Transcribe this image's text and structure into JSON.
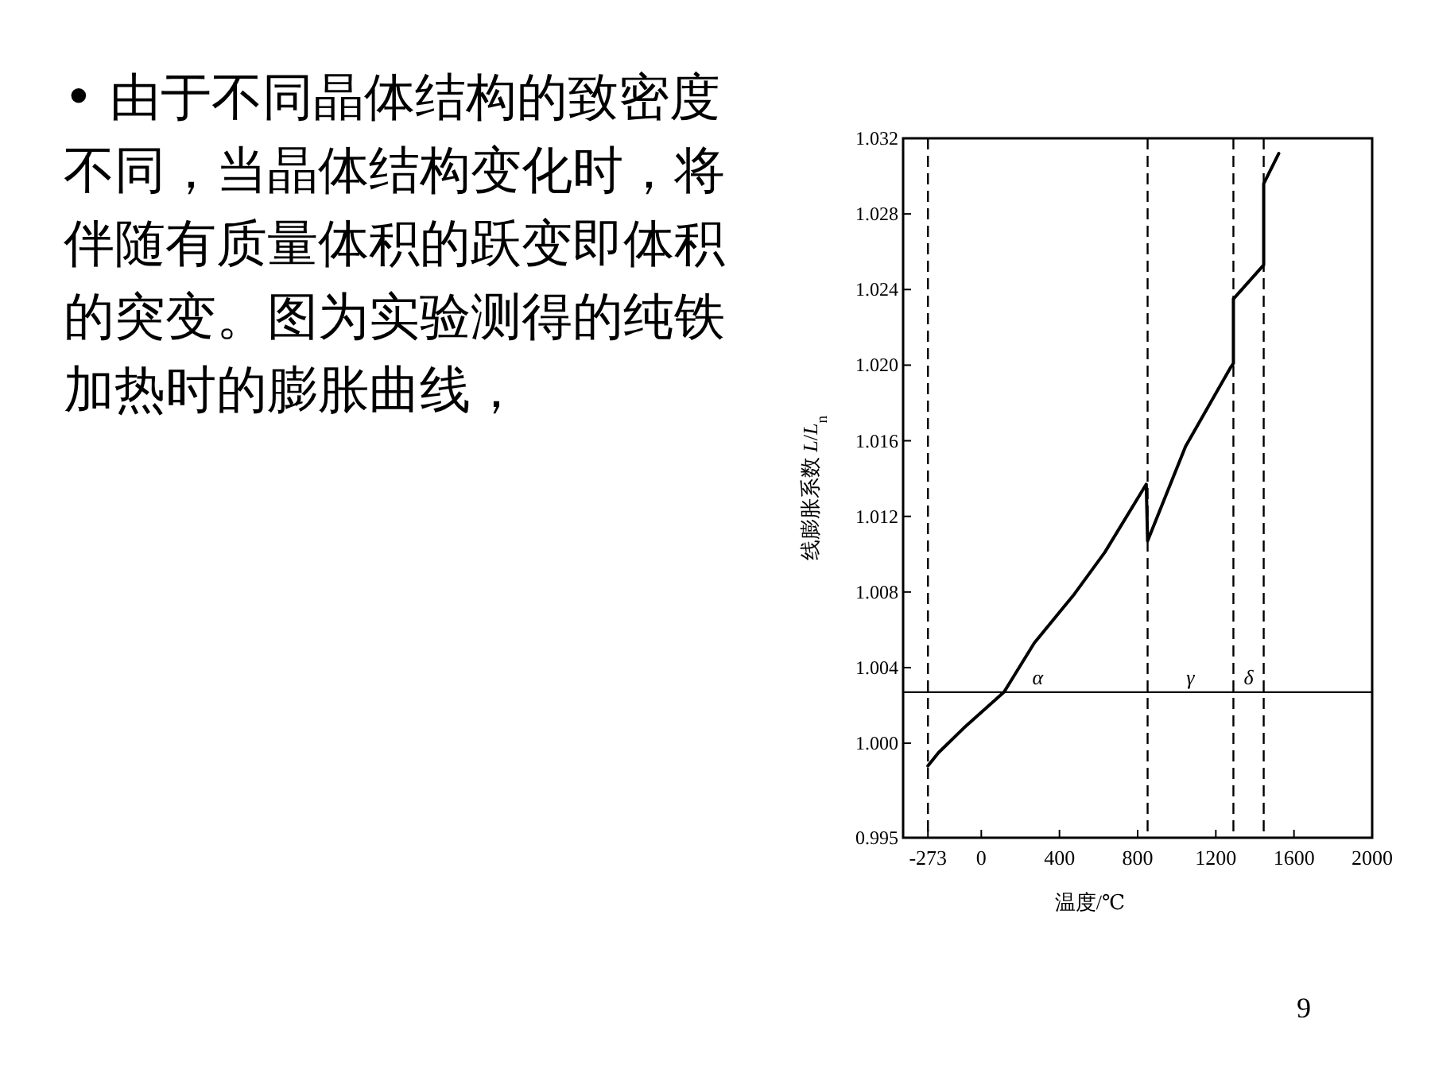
{
  "chart_data": {
    "type": "line",
    "xlabel": "温度/℃",
    "ylabel": "线膨胀系数 *L*/*L*$_{n}$",
    "xlim": [
      -400,
      2000
    ],
    "xticks": [
      -273,
      0,
      400,
      800,
      1200,
      1600,
      2000
    ],
    "ylim": [
      0.995,
      1.032
    ],
    "yticks": [
      {
        "value": 0.995,
        "label": "0.995"
      },
      {
        "value": 1.0,
        "label": "1.000"
      },
      {
        "value": 1.004,
        "label": "1.004"
      },
      {
        "value": 1.008,
        "label": "1.008"
      },
      {
        "value": 1.012,
        "label": "1.012"
      },
      {
        "value": 1.016,
        "label": "1.016"
      },
      {
        "value": 1.02,
        "label": "1.020"
      },
      {
        "value": 1.024,
        "label": "1.024"
      },
      {
        "value": 1.028,
        "label": "1.028"
      },
      {
        "value": 1.032,
        "label": "1.032"
      }
    ],
    "x": [
      -273,
      -219,
      -90,
      116,
      271,
      477,
      632,
      844,
      851,
      1045,
      1277,
      1290,
      1290,
      1445,
      1445,
      1522
    ],
    "series": [
      {
        "color": "#000000",
        "values": [
          0.9988,
          0.9995,
          1.0008,
          1.0027,
          1.0053,
          1.0079,
          1.0101,
          1.0137,
          1.0107,
          1.0157,
          1.0199,
          1.0201,
          1.0235,
          1.0253,
          1.0296,
          1.0312
        ]
      }
    ],
    "ref_lines": [
      {
        "axis": "x",
        "value": -273,
        "line_style": "dashed"
      },
      {
        "axis": "x",
        "value": 851,
        "line_style": "dashed"
      },
      {
        "axis": "x",
        "value": 1290,
        "line_style": "dashed"
      },
      {
        "axis": "x",
        "value": 1445,
        "line_style": "dashed"
      },
      {
        "axis": "y",
        "value": 1.0027,
        "line_style": "solid"
      }
    ],
    "annotations": [
      "α",
      "γ",
      "δ",
      "• 由于不同晶体结构的致密度不同，当晶体结构变化时，将伴随有质量体积的跃变即体积的突变。图为实验测得的纯铁加热时的膨胀曲线，",
      "9"
    ],
    "grid": false,
    "marker": "none",
    "line_style": "solid"
  }
}
